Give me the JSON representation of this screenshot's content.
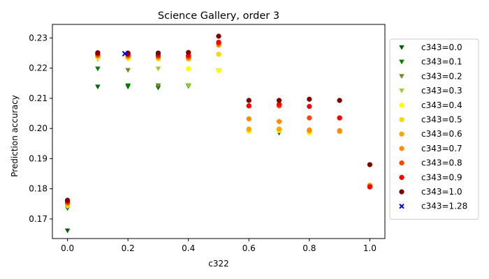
{
  "chart_data": {
    "type": "scatter",
    "title": "Science Gallery, order 3",
    "xlabel": "c322",
    "ylabel": "Prediction accuracy",
    "xlim": [
      -0.05,
      1.05
    ],
    "ylim": [
      0.1635,
      0.2345
    ],
    "xticks": [
      0.0,
      0.2,
      0.4,
      0.6,
      0.8,
      1.0
    ],
    "xtick_labels": [
      "0.0",
      "0.2",
      "0.4",
      "0.6",
      "0.8",
      "1.0"
    ],
    "yticks": [
      0.17,
      0.18,
      0.19,
      0.2,
      0.21,
      0.22,
      0.23
    ],
    "ytick_labels": [
      "0.17",
      "0.18",
      "0.19",
      "0.20",
      "0.21",
      "0.22",
      "0.23"
    ],
    "grid": false,
    "legend_position": "right",
    "series": [
      {
        "name": "c343=0.0",
        "color": "#006400",
        "marker": "triangle-down",
        "points": [
          [
            0.0,
            0.1661
          ],
          [
            0.1,
            0.2138
          ],
          [
            0.2,
            0.2138
          ],
          [
            0.3,
            0.2135
          ],
          [
            0.7,
            0.1985
          ]
        ]
      },
      {
        "name": "c343=0.1",
        "color": "#008000",
        "marker": "triangle-down",
        "points": [
          [
            0.0,
            0.1735
          ],
          [
            0.1,
            0.2198
          ],
          [
            0.2,
            0.2142
          ],
          [
            0.3,
            0.2142
          ],
          [
            0.4,
            0.214
          ]
        ]
      },
      {
        "name": "c343=0.2",
        "color": "#6b8e23",
        "marker": "triangle-down",
        "points": [
          [
            0.0,
            0.174
          ],
          [
            0.1,
            0.223
          ],
          [
            0.2,
            0.2193
          ],
          [
            0.3,
            0.2142
          ],
          [
            0.4,
            0.2142
          ]
        ]
      },
      {
        "name": "c343=0.3",
        "color": "#9acd32",
        "marker": "triangle-down",
        "points": [
          [
            0.0,
            0.1742
          ],
          [
            0.1,
            0.2232
          ],
          [
            0.2,
            0.223
          ],
          [
            0.3,
            0.2198
          ],
          [
            0.4,
            0.2143
          ],
          [
            0.5,
            0.2192
          ]
        ]
      },
      {
        "name": "c343=0.4",
        "color": "#ffff00",
        "marker": "circle",
        "points": [
          [
            0.0,
            0.1745
          ],
          [
            0.1,
            0.2235
          ],
          [
            0.2,
            0.2232
          ],
          [
            0.3,
            0.223
          ],
          [
            0.4,
            0.2198
          ],
          [
            0.5,
            0.2192
          ],
          [
            0.6,
            0.199
          ],
          [
            0.7,
            0.1993
          ],
          [
            0.8,
            0.1985
          ]
        ]
      },
      {
        "name": "c343=0.5",
        "color": "#ffd700",
        "marker": "circle",
        "points": [
          [
            0.0,
            0.1748
          ],
          [
            0.1,
            0.2238
          ],
          [
            0.2,
            0.2235
          ],
          [
            0.3,
            0.2232
          ],
          [
            0.4,
            0.223
          ],
          [
            0.5,
            0.2246
          ],
          [
            0.6,
            0.1995
          ],
          [
            0.7,
            0.1997
          ],
          [
            0.8,
            0.199
          ]
        ]
      },
      {
        "name": "c343=0.6",
        "color": "#ffa500",
        "marker": "circle",
        "points": [
          [
            0.0,
            0.175
          ],
          [
            0.1,
            0.224
          ],
          [
            0.2,
            0.2238
          ],
          [
            0.3,
            0.2235
          ],
          [
            0.4,
            0.2232
          ],
          [
            0.5,
            0.2276
          ],
          [
            0.6,
            0.1998
          ],
          [
            0.7,
            0.1998
          ],
          [
            0.8,
            0.1993
          ],
          [
            0.9,
            0.199
          ],
          [
            1.0,
            0.1812
          ]
        ]
      },
      {
        "name": "c343=0.7",
        "color": "#ff8c00",
        "marker": "circle",
        "points": [
          [
            0.0,
            0.1752
          ],
          [
            0.1,
            0.2242
          ],
          [
            0.2,
            0.224
          ],
          [
            0.3,
            0.2238
          ],
          [
            0.4,
            0.2235
          ],
          [
            0.5,
            0.228
          ],
          [
            0.6,
            0.2032
          ],
          [
            0.7,
            0.2023
          ],
          [
            0.8,
            0.1995
          ],
          [
            0.9,
            0.1993
          ]
        ]
      },
      {
        "name": "c343=0.8",
        "color": "#ff4500",
        "marker": "circle",
        "points": [
          [
            0.0,
            0.1755
          ],
          [
            0.1,
            0.2245
          ],
          [
            0.2,
            0.2243
          ],
          [
            0.3,
            0.224
          ],
          [
            0.4,
            0.2238
          ],
          [
            0.5,
            0.2283
          ],
          [
            0.6,
            0.2075
          ],
          [
            0.7,
            0.2075
          ],
          [
            0.8,
            0.2035
          ],
          [
            0.9,
            0.2035
          ],
          [
            1.0,
            0.1808
          ]
        ]
      },
      {
        "name": "c343=0.9",
        "color": "#ff0000",
        "marker": "circle",
        "points": [
          [
            0.0,
            0.1758
          ],
          [
            0.1,
            0.2248
          ],
          [
            0.2,
            0.2245
          ],
          [
            0.3,
            0.2243
          ],
          [
            0.4,
            0.2242
          ],
          [
            0.5,
            0.2286
          ],
          [
            0.6,
            0.2075
          ],
          [
            0.7,
            0.208
          ],
          [
            0.8,
            0.2073
          ],
          [
            0.9,
            0.2035
          ],
          [
            1.0,
            0.1806
          ]
        ]
      },
      {
        "name": "c343=1.0",
        "color": "#800000",
        "marker": "circle",
        "points": [
          [
            0.0,
            0.1762
          ],
          [
            0.1,
            0.2251
          ],
          [
            0.2,
            0.225
          ],
          [
            0.3,
            0.225
          ],
          [
            0.4,
            0.2252
          ],
          [
            0.5,
            0.2306
          ],
          [
            0.6,
            0.2093
          ],
          [
            0.7,
            0.2093
          ],
          [
            0.8,
            0.2097
          ],
          [
            0.9,
            0.2093
          ],
          [
            1.0,
            0.188
          ]
        ]
      },
      {
        "name": "c343=1.28",
        "color": "#0000cd",
        "marker": "x",
        "points": [
          [
            0.19,
            0.2248
          ]
        ]
      }
    ]
  }
}
